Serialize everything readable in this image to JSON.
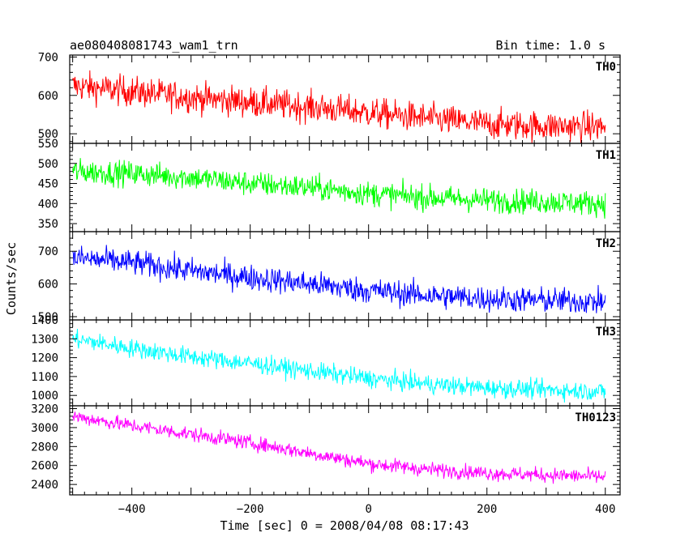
{
  "header": {
    "title": "ae080408081743_wam1_trn",
    "bin_time": "Bin time: 1.0 s"
  },
  "axes": {
    "xlabel": "Time [sec] 0 = 2008/04/08 08:17:43",
    "ylabel": "Counts/sec"
  },
  "chart_data": {
    "type": "line",
    "title": "ae080408081743_wam1_trn",
    "subtitle": "Bin time: 1.0 s",
    "xlabel": "Time [sec] 0 = 2008/04/08 08:17:43",
    "ylabel": "Counts/sec",
    "xlim": [
      -505,
      425
    ],
    "x_range": [
      -500,
      400
    ],
    "x_ticks": [
      -400,
      -200,
      0,
      200,
      400
    ],
    "grid": false,
    "legend": "none",
    "series": [
      {
        "name": "TH0",
        "color": "#ff0000",
        "ylim": [
          475,
          705
        ],
        "y_ticks": [
          500,
          600,
          700
        ],
        "trend_x": [
          -500,
          -400,
          -300,
          -200,
          -100,
          0,
          100,
          200,
          300,
          400
        ],
        "trend_y": [
          625,
          610,
          595,
          582,
          570,
          555,
          540,
          525,
          520,
          518
        ],
        "noise": 28
      },
      {
        "name": "TH1",
        "color": "#00ff00",
        "ylim": [
          330,
          550
        ],
        "y_ticks": [
          350,
          400,
          450,
          500,
          550
        ],
        "trend_x": [
          -500,
          -400,
          -300,
          -200,
          -100,
          0,
          100,
          200,
          300,
          400
        ],
        "trend_y": [
          480,
          475,
          465,
          450,
          440,
          425,
          415,
          408,
          405,
          400
        ],
        "noise": 22
      },
      {
        "name": "TH2",
        "color": "#0000ff",
        "ylim": [
          490,
          760
        ],
        "y_ticks": [
          500,
          600,
          700
        ],
        "trend_x": [
          -500,
          -400,
          -300,
          -200,
          -100,
          0,
          100,
          200,
          300,
          400
        ],
        "trend_y": [
          680,
          665,
          640,
          620,
          600,
          580,
          565,
          555,
          550,
          545
        ],
        "noise": 28
      },
      {
        "name": "TH3",
        "color": "#00ffff",
        "ylim": [
          945,
          1400
        ],
        "y_ticks": [
          1000,
          1100,
          1200,
          1300,
          1400
        ],
        "trend_x": [
          -500,
          -400,
          -300,
          -200,
          -100,
          0,
          100,
          200,
          300,
          400
        ],
        "trend_y": [
          1300,
          1250,
          1205,
          1170,
          1130,
          1090,
          1060,
          1040,
          1030,
          1020
        ],
        "noise": 35
      },
      {
        "name": "TH0123",
        "color": "#ff00ff",
        "ylim": [
          2290,
          3230
        ],
        "y_ticks": [
          2400,
          2600,
          2800,
          3000,
          3200
        ],
        "trend_x": [
          -500,
          -400,
          -300,
          -200,
          -100,
          0,
          100,
          200,
          300,
          400
        ],
        "trend_y": [
          3120,
          3020,
          2930,
          2840,
          2730,
          2620,
          2560,
          2520,
          2500,
          2480
        ],
        "noise": 55
      }
    ]
  }
}
